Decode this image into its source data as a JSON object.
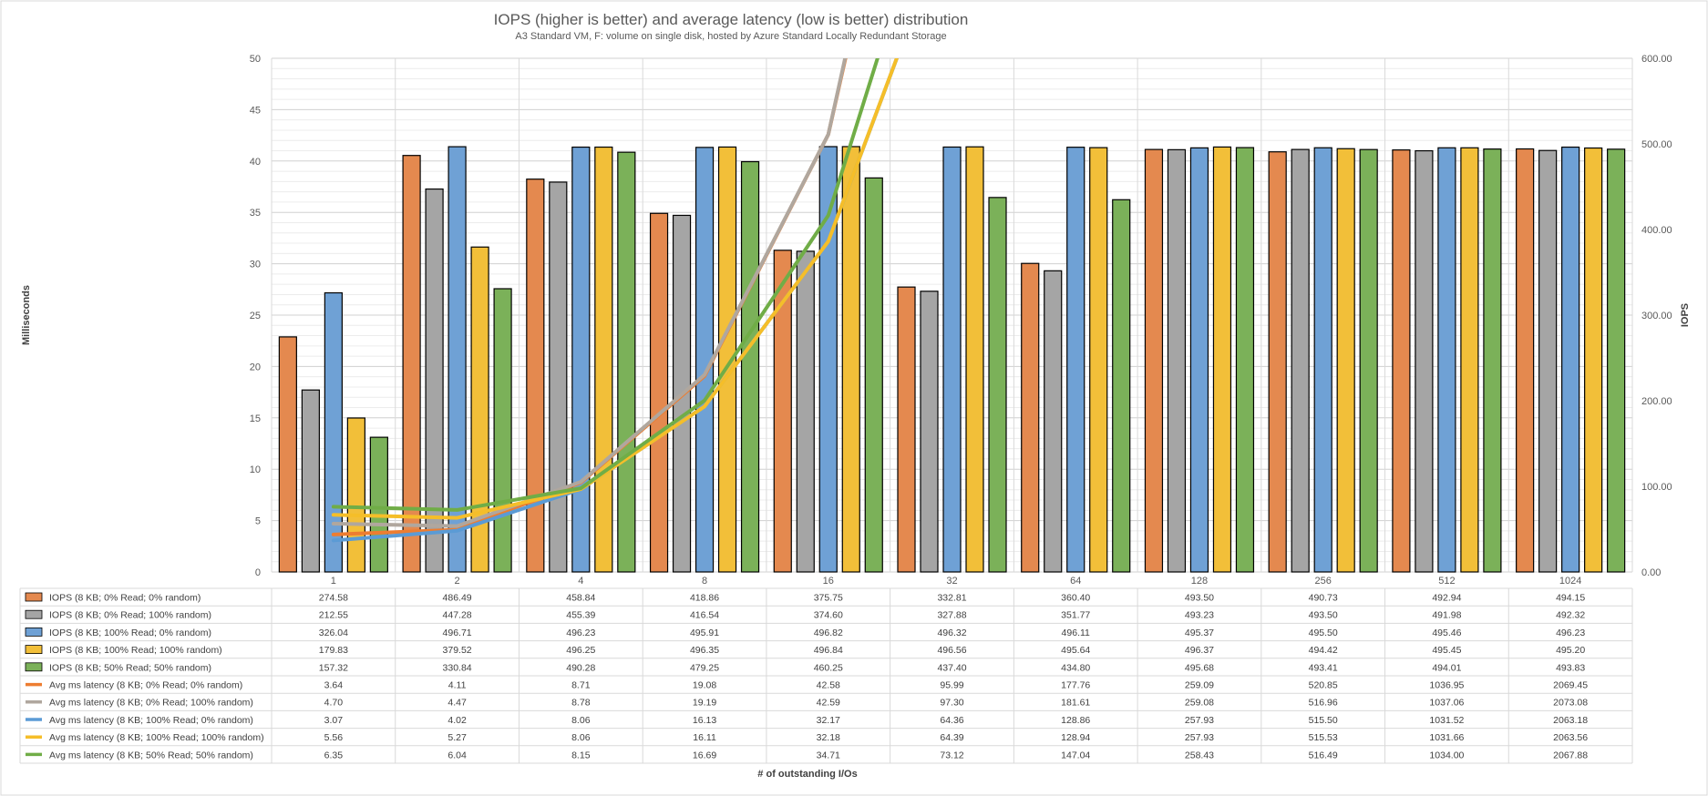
{
  "chart_data": {
    "type": "bar",
    "title": "IOPS (higher is better) and average latency (low is better) distribution",
    "subtitle": "A3 Standard VM, F: volume on single disk, hosted by Azure Standard Locally Redundant Storage",
    "xlabel": "# of outstanding I/Os",
    "ylabel_left": "Milliseconds",
    "ylabel_right": "IOPS",
    "ylim_left": [
      0,
      50
    ],
    "ylim_right": [
      0,
      600
    ],
    "left_ticks": [
      "0",
      "5",
      "10",
      "15",
      "20",
      "25",
      "30",
      "35",
      "40",
      "45",
      "50"
    ],
    "right_ticks": [
      "0.00",
      "100.00",
      "200.00",
      "300.00",
      "400.00",
      "500.00",
      "600.00"
    ],
    "grid": true,
    "legend": "data-table",
    "categories": [
      "1",
      "2",
      "4",
      "8",
      "16",
      "32",
      "64",
      "128",
      "256",
      "512",
      "1024"
    ],
    "bar_series": [
      {
        "name": "IOPS (8 KB; 0% Read; 0% random)",
        "color": "#E4894F",
        "values": [
          274.58,
          486.49,
          458.84,
          418.86,
          375.75,
          332.81,
          360.4,
          493.5,
          490.73,
          492.94,
          494.15
        ]
      },
      {
        "name": "IOPS (8 KB; 0% Read; 100% random)",
        "color": "#A5A5A5",
        "values": [
          212.55,
          447.28,
          455.39,
          416.54,
          374.6,
          327.88,
          351.77,
          493.23,
          493.5,
          491.98,
          492.32
        ]
      },
      {
        "name": "IOPS (8 KB; 100% Read; 0% random)",
        "color": "#6FA1D5",
        "values": [
          326.04,
          496.71,
          496.23,
          495.91,
          496.82,
          496.32,
          496.11,
          495.37,
          495.5,
          495.46,
          496.23
        ]
      },
      {
        "name": "IOPS (8 KB; 100% Read; 100% random)",
        "color": "#F2BF39",
        "values": [
          179.83,
          379.52,
          496.25,
          496.35,
          496.84,
          496.56,
          495.64,
          496.37,
          494.42,
          495.45,
          495.2
        ]
      },
      {
        "name": "IOPS (8 KB; 50% Read; 50% random)",
        "color": "#7BB159",
        "values": [
          157.32,
          330.84,
          490.28,
          479.25,
          460.25,
          437.4,
          434.8,
          495.68,
          493.41,
          494.01,
          493.83
        ]
      }
    ],
    "line_series": [
      {
        "name": "Avg ms latency (8 KB; 0% Read; 0% random)",
        "color": "#ED7D31",
        "values": [
          3.64,
          4.11,
          8.71,
          19.08,
          42.58,
          95.99,
          177.76,
          259.09,
          520.85,
          1036.95,
          2069.45
        ]
      },
      {
        "name": "Avg ms latency (8 KB; 0% Read; 100% random)",
        "color": "#B0A79E",
        "values": [
          4.7,
          4.47,
          8.78,
          19.19,
          42.59,
          97.3,
          181.61,
          259.08,
          516.96,
          1037.06,
          2073.08
        ]
      },
      {
        "name": "Avg ms latency (8 KB; 100% Read; 0% random)",
        "color": "#5B9BD5",
        "values": [
          3.07,
          4.02,
          8.06,
          16.13,
          32.17,
          64.36,
          128.86,
          257.93,
          515.5,
          1031.52,
          2063.18
        ]
      },
      {
        "name": "Avg ms latency (8 KB; 100% Read; 100% random)",
        "color": "#F5BE29",
        "values": [
          5.56,
          5.27,
          8.06,
          16.11,
          32.18,
          64.39,
          128.94,
          257.93,
          515.53,
          1031.66,
          2063.56
        ]
      },
      {
        "name": "Avg ms latency (8 KB; 50% Read; 50% random)",
        "color": "#70AD47",
        "values": [
          6.35,
          6.04,
          8.15,
          16.69,
          34.71,
          73.12,
          147.04,
          258.43,
          516.49,
          1034.0,
          2067.88
        ]
      }
    ],
    "table_rows": [
      {
        "label": "IOPS (8 KB; 0% Read; 0% random)",
        "color": "#E4894F",
        "marker": "box",
        "cells": [
          "274.58",
          "486.49",
          "458.84",
          "418.86",
          "375.75",
          "332.81",
          "360.40",
          "493.50",
          "490.73",
          "492.94",
          "494.15"
        ]
      },
      {
        "label": "IOPS (8 KB; 0% Read; 100% random)",
        "color": "#A5A5A5",
        "marker": "box",
        "cells": [
          "212.55",
          "447.28",
          "455.39",
          "416.54",
          "374.60",
          "327.88",
          "351.77",
          "493.23",
          "493.50",
          "491.98",
          "492.32"
        ]
      },
      {
        "label": "IOPS (8 KB; 100% Read; 0% random)",
        "color": "#6FA1D5",
        "marker": "box",
        "cells": [
          "326.04",
          "496.71",
          "496.23",
          "495.91",
          "496.82",
          "496.32",
          "496.11",
          "495.37",
          "495.50",
          "495.46",
          "496.23"
        ]
      },
      {
        "label": "IOPS (8 KB; 100% Read; 100% random)",
        "color": "#F2BF39",
        "marker": "box",
        "cells": [
          "179.83",
          "379.52",
          "496.25",
          "496.35",
          "496.84",
          "496.56",
          "495.64",
          "496.37",
          "494.42",
          "495.45",
          "495.20"
        ]
      },
      {
        "label": "IOPS (8 KB; 50% Read; 50% random)",
        "color": "#7BB159",
        "marker": "box",
        "cells": [
          "157.32",
          "330.84",
          "490.28",
          "479.25",
          "460.25",
          "437.40",
          "434.80",
          "495.68",
          "493.41",
          "494.01",
          "493.83"
        ]
      },
      {
        "label": "Avg ms latency (8 KB; 0% Read; 0% random)",
        "color": "#ED7D31",
        "marker": "line",
        "cells": [
          "3.64",
          "4.11",
          "8.71",
          "19.08",
          "42.58",
          "95.99",
          "177.76",
          "259.09",
          "520.85",
          "1036.95",
          "2069.45"
        ]
      },
      {
        "label": "Avg ms latency (8 KB; 0% Read; 100% random)",
        "color": "#B0A79E",
        "marker": "line",
        "cells": [
          "4.70",
          "4.47",
          "8.78",
          "19.19",
          "42.59",
          "97.30",
          "181.61",
          "259.08",
          "516.96",
          "1037.06",
          "2073.08"
        ]
      },
      {
        "label": "Avg ms latency (8 KB; 100% Read; 0% random)",
        "color": "#5B9BD5",
        "marker": "line",
        "cells": [
          "3.07",
          "4.02",
          "8.06",
          "16.13",
          "32.17",
          "64.36",
          "128.86",
          "257.93",
          "515.50",
          "1031.52",
          "2063.18"
        ]
      },
      {
        "label": "Avg ms latency (8 KB; 100% Read; 100% random)",
        "color": "#F5BE29",
        "marker": "line",
        "cells": [
          "5.56",
          "5.27",
          "8.06",
          "16.11",
          "32.18",
          "64.39",
          "128.94",
          "257.93",
          "515.53",
          "1031.66",
          "2063.56"
        ]
      },
      {
        "label": "Avg ms latency (8 KB; 50% Read; 50% random)",
        "color": "#70AD47",
        "marker": "line",
        "cells": [
          "6.35",
          "6.04",
          "8.15",
          "16.69",
          "34.71",
          "73.12",
          "147.04",
          "258.43",
          "516.49",
          "1034.00",
          "2067.88"
        ]
      }
    ]
  }
}
